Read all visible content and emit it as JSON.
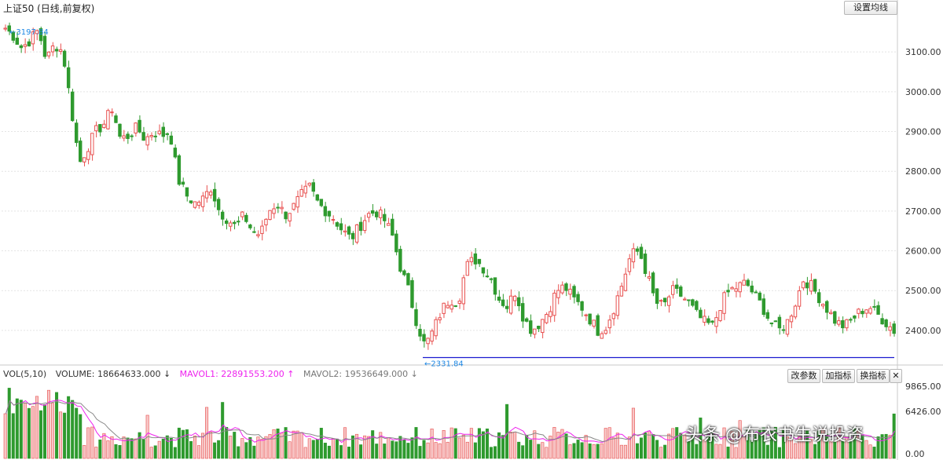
{
  "header": {
    "title": "上证50 (日线,前复权)",
    "set_ma_button": "设置均线"
  },
  "volume_panel": {
    "label_vol": "VOL(5,10)",
    "label_volume": "VOLUME: 18664633.000 ↓",
    "label_mavol1": "MAVOL1: 22891553.200 ↑",
    "label_mavol2": "MAVOL2: 19536649.000 ↓",
    "buttons": {
      "change_params": "改参数",
      "add_indicator": "加指标",
      "swap_indicator": "换指标",
      "close": "✕"
    }
  },
  "watermark": "头条 @布衣书生说投资",
  "colors": {
    "up": "#e8504f",
    "down": "#2e9a2e",
    "ma1": "#ee22ee",
    "ma2": "#888888",
    "support": "#1a1ad0",
    "marker": "#1e88e5"
  },
  "chart_data": {
    "type": "candlestick",
    "title": "上证50 (日线,前复权)",
    "price_ylim": [
      2315,
      3195
    ],
    "price_ticks": [
      "3100.00",
      "3000.00",
      "2900.00",
      "2800.00",
      "2700.00",
      "2600.00",
      "2500.00",
      "2400.00"
    ],
    "annotations": {
      "high": "3197.84",
      "low": "2331.84"
    },
    "support_level": 2331.84,
    "volume_ticks": [
      "9865.00",
      "6426.00",
      "0.00"
    ],
    "volume_ylim": [
      0,
      10500
    ],
    "trend_close": [
      3160,
      3140,
      3110,
      3130,
      3155,
      3080,
      3120,
      3100,
      2960,
      2820,
      2860,
      2900,
      2920,
      2960,
      2880,
      2890,
      2910,
      2880,
      2900,
      2890,
      2900,
      2780,
      2740,
      2720,
      2730,
      2760,
      2700,
      2680,
      2660,
      2690,
      2650,
      2640,
      2700,
      2720,
      2690,
      2710,
      2740,
      2760,
      2720,
      2700,
      2680,
      2650,
      2630,
      2660,
      2690,
      2700,
      2680,
      2640,
      2560,
      2500,
      2420,
      2360,
      2400,
      2450,
      2480,
      2470,
      2560,
      2580,
      2560,
      2530,
      2480,
      2460,
      2500,
      2430,
      2400,
      2420,
      2450,
      2500,
      2510,
      2480,
      2460,
      2430,
      2400,
      2410,
      2460,
      2520,
      2590,
      2600,
      2540,
      2470,
      2460,
      2500,
      2490,
      2470,
      2440,
      2420,
      2410,
      2470,
      2500,
      2510,
      2520,
      2490,
      2460,
      2420,
      2400,
      2420,
      2470,
      2530,
      2510,
      2480,
      2450,
      2420,
      2410,
      2430,
      2450,
      2460,
      2440,
      2420,
      2400
    ]
  }
}
